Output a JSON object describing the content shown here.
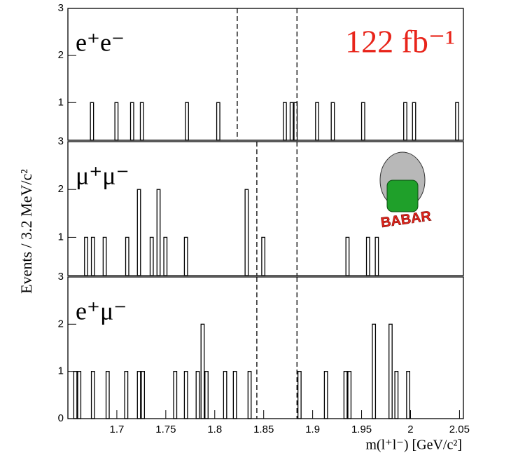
{
  "chart_data": [
    {
      "type": "histogram",
      "label": "e⁺e⁻",
      "annotation": "122 fb⁻¹",
      "annotation_color": "#e8241a",
      "bin_width": 0.0032,
      "x": [
        1.673,
        1.698,
        1.714,
        1.724,
        1.77,
        1.802,
        1.87,
        1.877,
        1.881,
        1.903,
        1.919,
        1.95,
        1.993,
        2.002,
        2.046
      ],
      "values": [
        1,
        1,
        1,
        1,
        1,
        1,
        1,
        1,
        1,
        1,
        1,
        1,
        1,
        1,
        1
      ],
      "cuts": [
        1.823,
        1.884
      ],
      "xlim": [
        1.65,
        2.054
      ],
      "ylim": [
        0.2,
        3
      ],
      "yticks": [
        1,
        2,
        3
      ]
    },
    {
      "type": "histogram",
      "label": "μ⁺μ⁻",
      "logo_text": "BABAR",
      "ylabel": "Events / 3.2 MeV/c²",
      "bin_width": 0.0032,
      "x": [
        1.667,
        1.674,
        1.686,
        1.709,
        1.721,
        1.734,
        1.741,
        1.748,
        1.769,
        1.831,
        1.848,
        1.934,
        1.955,
        1.964
      ],
      "values": [
        1,
        1,
        1,
        1,
        2,
        1,
        2,
        1,
        1,
        2,
        1,
        1,
        1,
        1
      ],
      "cuts": [
        1.843,
        1.884
      ],
      "xlim": [
        1.65,
        2.054
      ],
      "ylim": [
        0.2,
        3
      ],
      "yticks": [
        1,
        2,
        3
      ]
    },
    {
      "type": "histogram",
      "label": "e⁺μ⁻",
      "xlabel": "m(l⁺l⁻)  [GeV/c²]",
      "bin_width": 0.0032,
      "x": [
        1.656,
        1.66,
        1.674,
        1.689,
        1.708,
        1.721,
        1.725,
        1.758,
        1.769,
        1.781,
        1.786,
        1.79,
        1.809,
        1.819,
        1.834,
        1.885,
        1.912,
        1.932,
        1.936,
        1.961,
        1.978,
        1.984,
        1.996
      ],
      "values": [
        1,
        1,
        1,
        1,
        1,
        1,
        1,
        1,
        1,
        1,
        2,
        1,
        1,
        1,
        1,
        1,
        1,
        1,
        1,
        2,
        2,
        1,
        1
      ],
      "cuts": [
        1.843,
        1.884
      ],
      "xlim": [
        1.65,
        2.054
      ],
      "ylim": [
        0,
        3
      ],
      "yticks": [
        0,
        1,
        2,
        3
      ],
      "xticks": [
        1.7,
        1.75,
        1.8,
        1.85,
        1.9,
        1.95,
        2,
        2.05
      ]
    }
  ]
}
